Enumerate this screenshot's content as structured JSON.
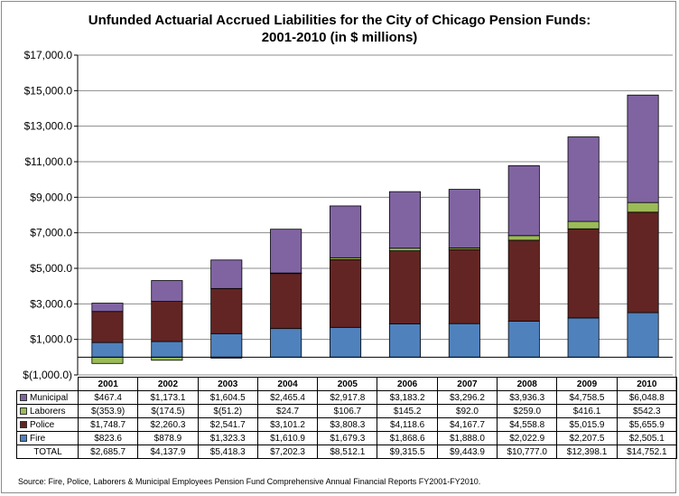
{
  "chart_data": {
    "type": "bar",
    "stacked": true,
    "title": "Unfunded Actuarial Accrued Liabilities for the City of Chicago Pension Funds:",
    "subtitle": "2001-2010 (in $ millions)",
    "categories": [
      "2001",
      "2002",
      "2003",
      "2004",
      "2005",
      "2006",
      "2007",
      "2008",
      "2009",
      "2010"
    ],
    "ylim": [
      -1000,
      17000
    ],
    "yticks": [
      -1000,
      1000,
      3000,
      5000,
      7000,
      9000,
      11000,
      13000,
      15000,
      17000
    ],
    "ytick_labels": [
      "$(1,000.0)",
      "$1,000.0",
      "$3,000.0",
      "$5,000.0",
      "$7,000.0",
      "$9,000.0",
      "$11,000.0",
      "$13,000.0",
      "$15,000.0",
      "$17,000.0"
    ],
    "grid": "horizontal",
    "series": [
      {
        "name": "Fire",
        "color": "#4f81bd",
        "values": [
          823.6,
          878.9,
          1323.3,
          1610.9,
          1679.3,
          1868.6,
          1888.0,
          2022.9,
          2207.5,
          2505.1
        ],
        "labels": [
          "$823.6",
          "$878.9",
          "$1,323.3",
          "$1,610.9",
          "$1,679.3",
          "$1,868.6",
          "$1,888.0",
          "$2,022.9",
          "$2,207.5",
          "$2,505.1"
        ]
      },
      {
        "name": "Police",
        "color": "#632523",
        "values": [
          1748.7,
          2260.3,
          2541.7,
          3101.2,
          3808.3,
          4118.6,
          4167.7,
          4558.8,
          5015.9,
          5655.9
        ],
        "labels": [
          "$1,748.7",
          "$2,260.3",
          "$2,541.7",
          "$3,101.2",
          "$3,808.3",
          "$4,118.6",
          "$4,167.7",
          "$4,558.8",
          "$5,015.9",
          "$5,655.9"
        ]
      },
      {
        "name": "Laborers",
        "color": "#9bbb59",
        "values": [
          -353.9,
          -174.5,
          -51.2,
          24.7,
          106.7,
          145.2,
          92.0,
          259.0,
          416.1,
          542.3
        ],
        "labels": [
          "$(353.9)",
          "$(174.5)",
          "$(51.2)",
          "$24.7",
          "$106.7",
          "$145.2",
          "$92.0",
          "$259.0",
          "$416.1",
          "$542.3"
        ]
      },
      {
        "name": "Municipal",
        "color": "#8064a2",
        "values": [
          467.4,
          1173.1,
          1604.5,
          2465.4,
          2917.8,
          3183.2,
          3296.2,
          3936.3,
          4758.5,
          6048.8
        ],
        "labels": [
          "$467.4",
          "$1,173.1",
          "$1,604.5",
          "$2,465.4",
          "$2,917.8",
          "$3,183.2",
          "$3,296.2",
          "$3,936.3",
          "$4,758.5",
          "$6,048.8"
        ]
      }
    ],
    "table_rows": [
      "Municipal",
      "Laborers",
      "Police",
      "Fire"
    ],
    "total": {
      "name": "TOTAL",
      "values": [
        2685.7,
        4137.9,
        5418.3,
        7202.3,
        8512.1,
        9315.5,
        9443.9,
        10777.0,
        12398.1,
        14752.1
      ],
      "labels": [
        "$2,685.7",
        "$4,137.9",
        "$5,418.3",
        "$7,202.3",
        "$8,512.1",
        "$9,315.5",
        "$9,443.9",
        "$10,777.0",
        "$12,398.1",
        "$14,752.1"
      ]
    }
  },
  "source": "Source: Fire, Police, Laborers & Municipal Employees Pension Fund Comprehensive Annual Financial Reports FY2001-FY2010."
}
